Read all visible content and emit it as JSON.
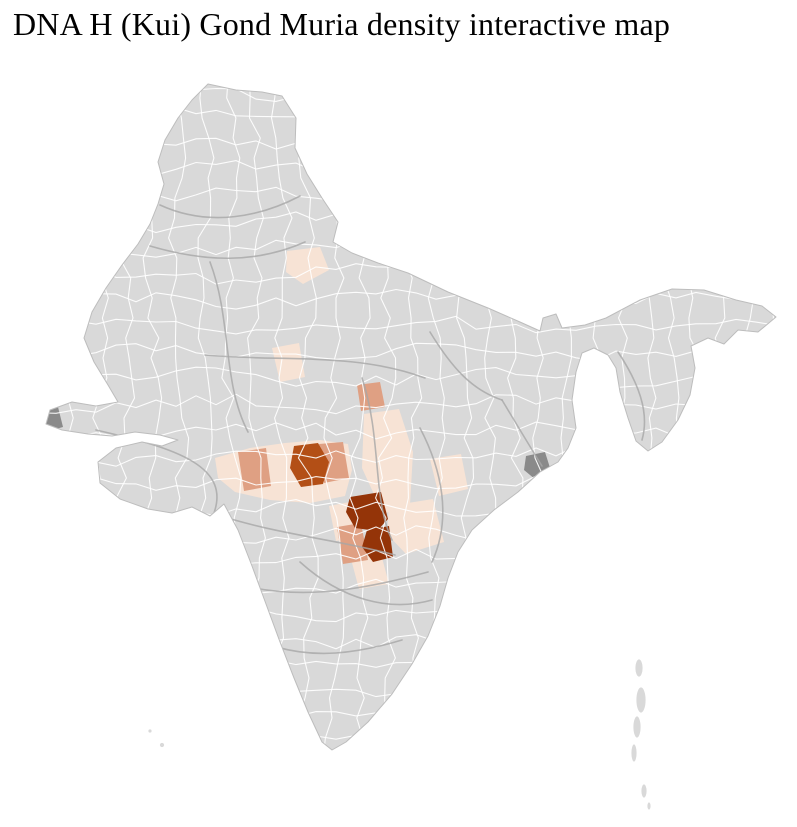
{
  "page": {
    "title": "DNA H (Kui) Gond Muria density interactive map"
  },
  "map": {
    "base_fill": "#d9d9d9",
    "district_border_color": "#ffffff",
    "state_border_color": "#a6a6a6",
    "outline_color": "#bdbdbd",
    "no_data_fill": "#8a8a8a",
    "sea_color": "#ffffff",
    "palette": {
      "density_low": "#f7e3d5",
      "density_medium": "#dfa083",
      "density_high": "#b34f16",
      "density_very_high": "#943408"
    }
  }
}
